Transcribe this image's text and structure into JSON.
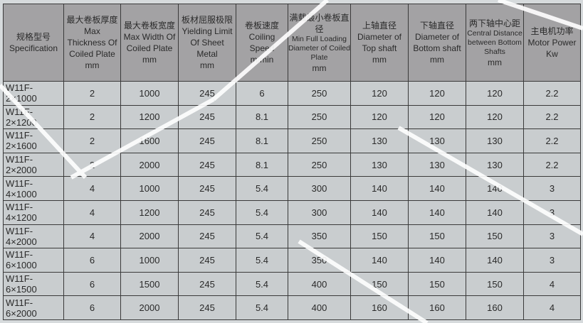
{
  "headers": [
    {
      "cn": "规格型号",
      "en": "Specification",
      "unit": ""
    },
    {
      "cn": "最大卷板厚度",
      "en": "Max Thickness Of Coiled Plate",
      "unit": "mm"
    },
    {
      "cn": "最大卷板宽度",
      "en": "Max Width Of Coiled Plate",
      "unit": "mm"
    },
    {
      "cn": "板材屈服极限",
      "en": "Yielding Limit Of Sheet Metal",
      "unit": "mm"
    },
    {
      "cn": "卷板速度",
      "en": "Coiling Speed",
      "unit": "m/min"
    },
    {
      "cn": "满载最小卷板直径",
      "en": "Min Full Loading Diameter of Coiled Plate",
      "unit": "mm"
    },
    {
      "cn": "上轴直径",
      "en": "Diameter of Top shaft",
      "unit": "mm"
    },
    {
      "cn": "下轴直径",
      "en": "Diameter of Bottom shaft",
      "unit": "mm"
    },
    {
      "cn": "两下轴中心距",
      "en": "Central Distance between Bottom Shafts",
      "unit": "mm"
    },
    {
      "cn": "主电机功率",
      "en": "Motor Power",
      "unit": "Kw"
    }
  ],
  "rows": [
    [
      "W11F-2×1000",
      "2",
      "1000",
      "245",
      "6",
      "250",
      "120",
      "120",
      "120",
      "2.2"
    ],
    [
      "W11F-2×1200",
      "2",
      "1200",
      "245",
      "8.1",
      "250",
      "120",
      "120",
      "120",
      "2.2"
    ],
    [
      "W11F-2×1600",
      "2",
      "1600",
      "245",
      "8.1",
      "250",
      "130",
      "130",
      "130",
      "2.2"
    ],
    [
      "W11F-2×2000",
      "2",
      "2000",
      "245",
      "8.1",
      "250",
      "130",
      "130",
      "130",
      "2.2"
    ],
    [
      "W11F-4×1000",
      "4",
      "1000",
      "245",
      "5.4",
      "300",
      "140",
      "140",
      "140",
      "3"
    ],
    [
      "W11F-4×1200",
      "4",
      "1200",
      "245",
      "5.4",
      "300",
      "140",
      "140",
      "140",
      "3"
    ],
    [
      "W11F-4×2000",
      "4",
      "2000",
      "245",
      "5.4",
      "350",
      "150",
      "150",
      "150",
      "3"
    ],
    [
      "W11F-6×1000",
      "6",
      "1000",
      "245",
      "5.4",
      "350",
      "140",
      "140",
      "140",
      "3"
    ],
    [
      "W11F-6×1500",
      "6",
      "1500",
      "245",
      "5.4",
      "400",
      "150",
      "150",
      "150",
      "4"
    ],
    [
      "W11F-6×2000",
      "6",
      "2000",
      "245",
      "5.4",
      "400",
      "160",
      "160",
      "160",
      "4"
    ]
  ]
}
